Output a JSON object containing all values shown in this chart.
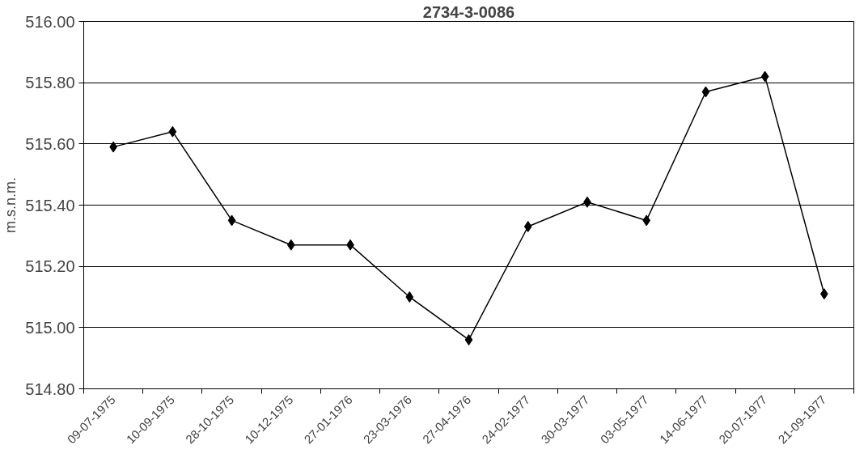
{
  "chart_data": {
    "type": "line",
    "title": "2734-3-0086",
    "ylabel": "m.s.n.m.",
    "categories": [
      "09-07-1975",
      "10-09-1975",
      "28-10-1975",
      "10-12-1975",
      "27-01-1976",
      "23-03-1976",
      "27-04-1976",
      "24-02-1977",
      "30-03-1977",
      "03-05-1977",
      "14-06-1977",
      "20-07-1977",
      "21-09-1977"
    ],
    "series": [
      {
        "color": "#000000",
        "values": [
          515.59,
          515.64,
          515.35,
          515.27,
          515.27,
          515.1,
          514.96,
          515.33,
          515.41,
          515.35,
          515.77,
          515.82,
          515.11
        ]
      }
    ],
    "ylim": [
      514.8,
      516.0
    ],
    "yticks": [
      {
        "value": 514.8,
        "label": "514.80"
      },
      {
        "value": 515.0,
        "label": "515.00"
      },
      {
        "value": 515.2,
        "label": "515.20"
      },
      {
        "value": 515.4,
        "label": "515.40"
      },
      {
        "value": 515.6,
        "label": "515.60"
      },
      {
        "value": 515.8,
        "label": "515.80"
      },
      {
        "value": 516.0,
        "label": "516.00"
      }
    ],
    "grid": "y",
    "marker": "diamond",
    "line_style": "solid"
  }
}
